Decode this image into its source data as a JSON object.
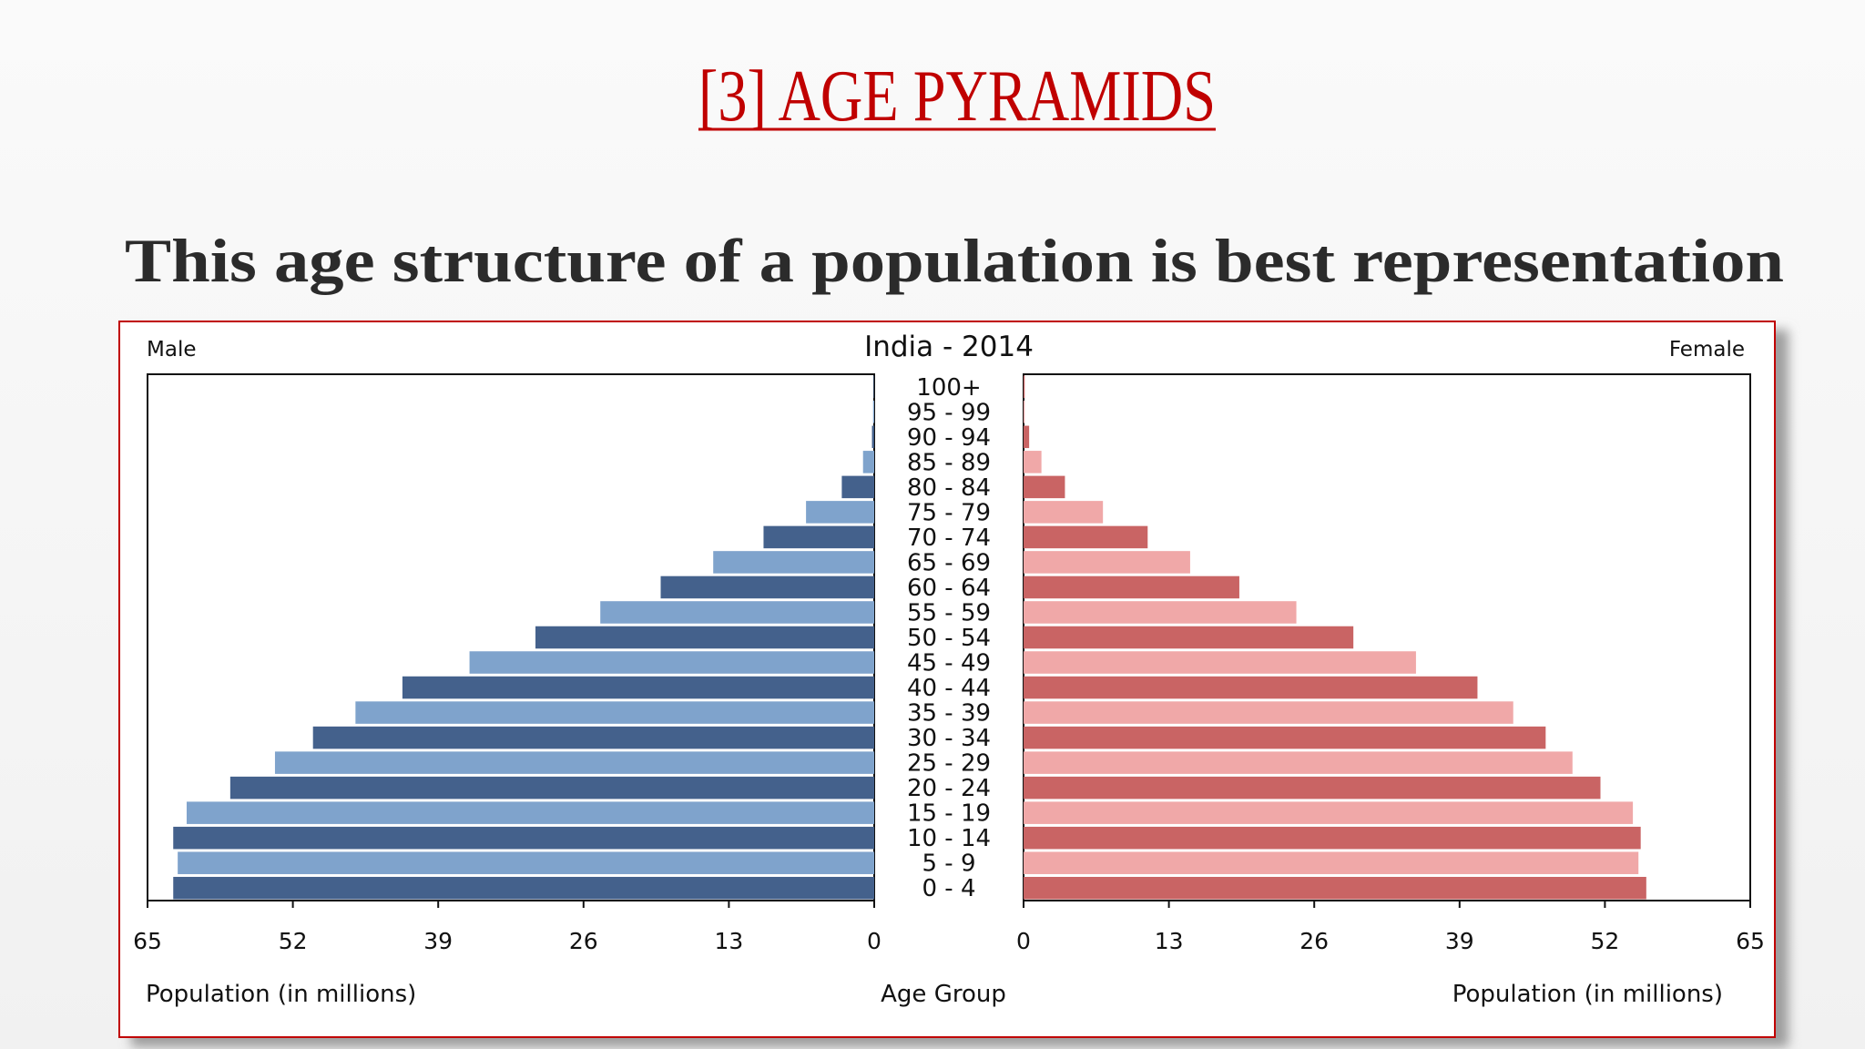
{
  "header": {
    "title": "[3] AGE PYRAMIDS",
    "subtitle": "This age structure of a population is best representation"
  },
  "chart_data": {
    "type": "pyramid",
    "title": "India - 2014",
    "categories": [
      "100+",
      "95 - 99",
      "90 - 94",
      "85 - 89",
      "80 - 84",
      "75 - 79",
      "70 - 74",
      "65 - 69",
      "60 - 64",
      "55 - 59",
      "50 - 54",
      "45 - 49",
      "40 - 44",
      "35 - 39",
      "30 - 34",
      "25 - 29",
      "20 - 24",
      "15 - 19",
      "10 - 14",
      "5 - 9",
      "0 - 4"
    ],
    "series": [
      {
        "name": "Male",
        "colors": [
          "#44618c",
          "#7fa3cc"
        ],
        "values": [
          0.05,
          0.1,
          0.2,
          1.0,
          2.9,
          6.1,
          9.9,
          14.4,
          19.1,
          24.5,
          30.3,
          36.2,
          42.2,
          46.4,
          50.2,
          53.6,
          57.6,
          61.5,
          62.7,
          62.3,
          62.7
        ]
      },
      {
        "name": "Female",
        "colors": [
          "#c96464",
          "#f0a8a8"
        ],
        "values": [
          0.1,
          0.1,
          0.5,
          1.6,
          3.7,
          7.1,
          11.1,
          14.9,
          19.3,
          24.4,
          29.5,
          35.1,
          40.6,
          43.8,
          46.7,
          49.1,
          51.6,
          54.5,
          55.2,
          55.0,
          55.7
        ]
      }
    ],
    "xlim": [
      0,
      65
    ],
    "xticks": [
      0,
      13,
      26,
      39,
      52,
      65
    ],
    "xlabel": "Population (in millions)",
    "category_label": "Age Group"
  }
}
